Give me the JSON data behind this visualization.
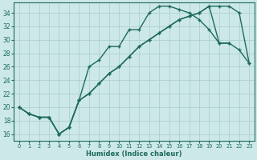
{
  "xlabel": "Humidex (Indice chaleur)",
  "bg_color": "#cce8e8",
  "grid_color": "#b0cfcf",
  "line_color": "#1e6b5a",
  "xlim": [
    -0.5,
    23.5
  ],
  "ylim": [
    15.0,
    35.5
  ],
  "xticks": [
    0,
    1,
    2,
    3,
    4,
    5,
    6,
    7,
    8,
    9,
    10,
    11,
    12,
    13,
    14,
    15,
    16,
    17,
    18,
    19,
    20,
    21,
    22,
    23
  ],
  "yticks": [
    16,
    18,
    20,
    22,
    24,
    26,
    28,
    30,
    32,
    34
  ],
  "curve1_x": [
    0,
    1,
    2,
    3,
    4,
    5,
    6,
    7,
    8,
    9,
    10,
    11,
    12,
    13,
    14,
    15,
    16,
    17,
    18,
    19,
    20,
    21
  ],
  "curve1_y": [
    20,
    19,
    18.5,
    18.5,
    16,
    17,
    21,
    26,
    27,
    29,
    29,
    31.5,
    31.5,
    34,
    35,
    35,
    34.5,
    34,
    33,
    31.5,
    29.5,
    29.5
  ],
  "curve2_x": [
    0,
    1,
    2,
    3,
    4,
    5,
    6,
    7,
    8,
    9,
    10,
    11,
    12,
    13,
    14,
    15,
    16,
    17,
    18,
    19,
    20,
    21,
    22,
    23
  ],
  "curve2_y": [
    20,
    19,
    18.5,
    18.5,
    16,
    17,
    21,
    22,
    23.5,
    25,
    26,
    27.5,
    29,
    30,
    31,
    32,
    33,
    33.5,
    34,
    35,
    29.5,
    29.5,
    28.5,
    26.5
  ],
  "curve3_x": [
    0,
    1,
    2,
    3,
    4,
    5,
    6,
    7,
    8,
    9,
    10,
    11,
    12,
    13,
    14,
    15,
    16,
    17,
    18,
    19,
    20,
    21,
    22,
    23
  ],
  "curve3_y": [
    20,
    19,
    18.5,
    18.5,
    16,
    17,
    21,
    22,
    23.5,
    25,
    26,
    27.5,
    29,
    30,
    31,
    32,
    33,
    33.5,
    34,
    35,
    35,
    35,
    34,
    26.5
  ]
}
